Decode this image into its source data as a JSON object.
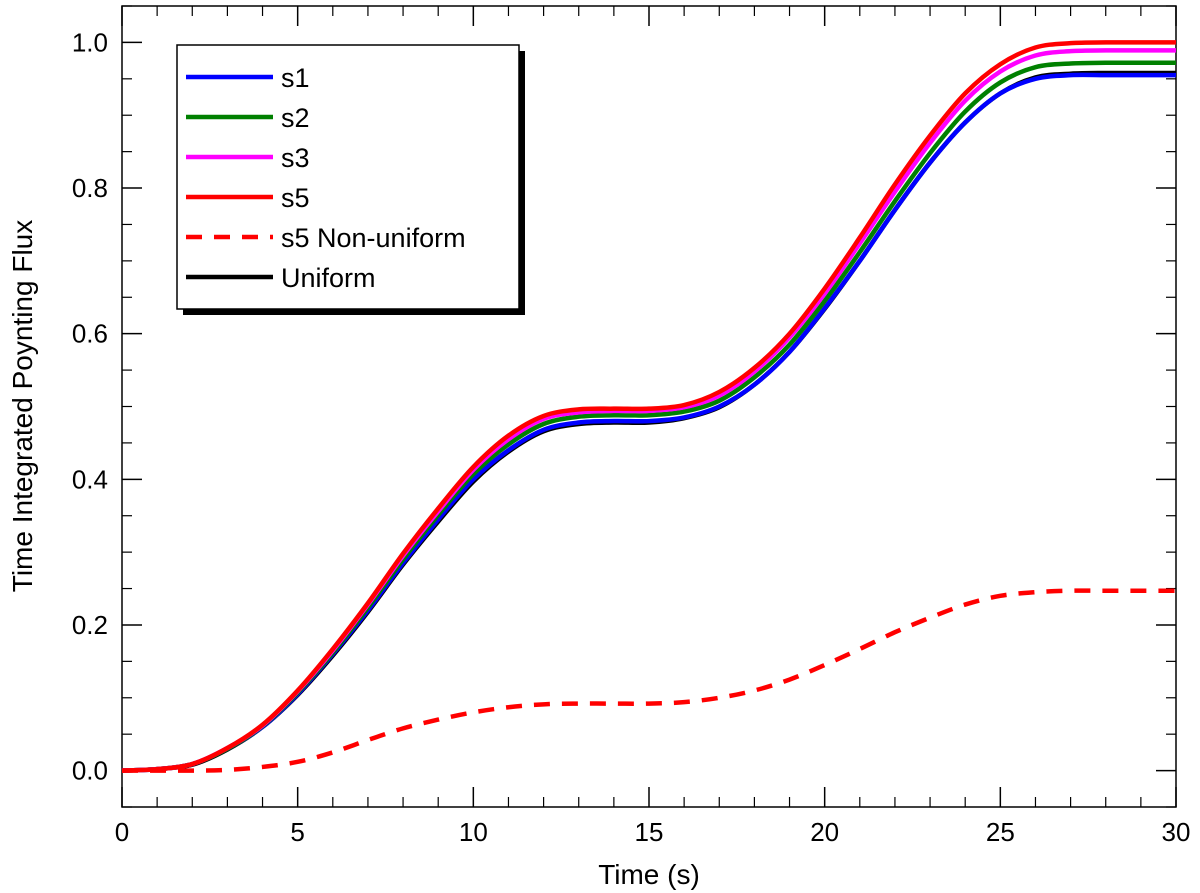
{
  "chart_data": {
    "type": "line",
    "title": "",
    "xlabel": "Time (s)",
    "ylabel": "Time Integrated Poynting Flux",
    "xlim": [
      0,
      30
    ],
    "ylim": [
      -0.05,
      1.05
    ],
    "x_ticks": [
      0,
      5,
      10,
      15,
      20,
      25,
      30
    ],
    "y_ticks": [
      0.0,
      0.2,
      0.4,
      0.6,
      0.8,
      1.0
    ],
    "x_tick_labels": [
      "0",
      "5",
      "10",
      "15",
      "20",
      "25",
      "30"
    ],
    "y_tick_labels": [
      "0.0",
      "0.2",
      "0.4",
      "0.6",
      "0.8",
      "1.0"
    ],
    "grid": false,
    "legend_position": "top-left",
    "x": [
      0,
      1,
      2,
      3,
      4,
      5,
      6,
      7,
      8,
      9,
      10,
      11,
      12,
      13,
      14,
      15,
      16,
      17,
      18,
      19,
      20,
      21,
      22,
      23,
      24,
      25,
      26,
      27,
      28,
      29,
      30
    ],
    "series": [
      {
        "name": "s1",
        "color": "#0000ff",
        "dash": "solid",
        "values": [
          0,
          0.002,
          0.009,
          0.03,
          0.06,
          0.105,
          0.16,
          0.22,
          0.285,
          0.345,
          0.4,
          0.44,
          0.468,
          0.478,
          0.48,
          0.48,
          0.485,
          0.5,
          0.53,
          0.575,
          0.635,
          0.7,
          0.77,
          0.835,
          0.89,
          0.93,
          0.95,
          0.955,
          0.955,
          0.955,
          0.955
        ]
      },
      {
        "name": "s2",
        "color": "#008000",
        "dash": "solid",
        "values": [
          0,
          0.002,
          0.009,
          0.03,
          0.061,
          0.107,
          0.162,
          0.224,
          0.29,
          0.351,
          0.407,
          0.448,
          0.476,
          0.486,
          0.488,
          0.488,
          0.493,
          0.508,
          0.54,
          0.585,
          0.645,
          0.712,
          0.782,
          0.848,
          0.905,
          0.945,
          0.966,
          0.971,
          0.972,
          0.972,
          0.972
        ]
      },
      {
        "name": "s3",
        "color": "#ff00ff",
        "dash": "solid",
        "values": [
          0,
          0.002,
          0.009,
          0.031,
          0.062,
          0.109,
          0.165,
          0.228,
          0.295,
          0.356,
          0.413,
          0.455,
          0.483,
          0.492,
          0.494,
          0.494,
          0.499,
          0.515,
          0.548,
          0.595,
          0.655,
          0.724,
          0.795,
          0.862,
          0.92,
          0.96,
          0.982,
          0.988,
          0.989,
          0.989,
          0.989
        ]
      },
      {
        "name": "s5",
        "color": "#ff0000",
        "dash": "solid",
        "values": [
          0,
          0.002,
          0.009,
          0.031,
          0.063,
          0.11,
          0.167,
          0.23,
          0.298,
          0.36,
          0.417,
          0.46,
          0.487,
          0.496,
          0.497,
          0.497,
          0.502,
          0.52,
          0.553,
          0.6,
          0.662,
          0.732,
          0.805,
          0.872,
          0.93,
          0.97,
          0.993,
          0.999,
          1.0,
          1.0,
          1.0
        ]
      },
      {
        "name": "s5 Non-uniform",
        "color": "#ff0000",
        "dash": "dashed",
        "values": [
          0,
          0,
          0,
          0.001,
          0.005,
          0.012,
          0.025,
          0.042,
          0.058,
          0.07,
          0.08,
          0.087,
          0.091,
          0.092,
          0.092,
          0.092,
          0.094,
          0.1,
          0.11,
          0.125,
          0.145,
          0.167,
          0.19,
          0.21,
          0.228,
          0.24,
          0.245,
          0.247,
          0.247,
          0.247,
          0.247
        ]
      },
      {
        "name": "Uniform",
        "color": "#000000",
        "dash": "solid",
        "values": [
          0,
          0.002,
          0.008,
          0.029,
          0.06,
          0.104,
          0.158,
          0.218,
          0.283,
          0.342,
          0.397,
          0.438,
          0.466,
          0.476,
          0.478,
          0.478,
          0.484,
          0.499,
          0.53,
          0.575,
          0.634,
          0.7,
          0.77,
          0.835,
          0.89,
          0.93,
          0.952,
          0.957,
          0.958,
          0.958,
          0.958
        ]
      }
    ]
  }
}
